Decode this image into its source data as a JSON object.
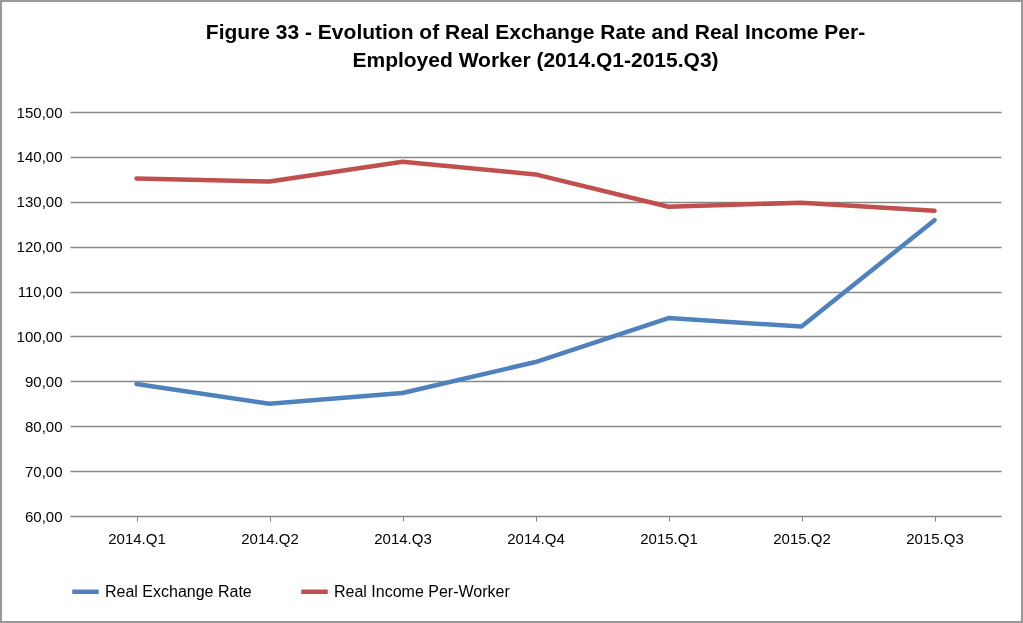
{
  "chart_data": {
    "type": "line",
    "title": "Figure 33 - Evolution of Real Exchange Rate and Real Income Per-Employed Worker (2014.Q1-2015.Q3)",
    "categories": [
      "2014.Q1",
      "2014.Q2",
      "2014.Q3",
      "2014.Q4",
      "2015.Q1",
      "2015.Q2",
      "2015.Q3"
    ],
    "series": [
      {
        "name": "Real Exchange Rate",
        "color": "#4f81bd",
        "values": [
          89.4,
          85.0,
          87.4,
          94.3,
          104.1,
          102.2,
          125.9
        ]
      },
      {
        "name": "Real Income Per-Worker",
        "color": "#c0504d",
        "values": [
          135.2,
          134.5,
          138.9,
          136.1,
          128.9,
          129.8,
          128.0
        ]
      }
    ],
    "ylim": [
      60,
      150
    ],
    "yticks": [
      {
        "value": 60,
        "label": "60,00"
      },
      {
        "value": 70,
        "label": "70,00"
      },
      {
        "value": 80,
        "label": "80,00"
      },
      {
        "value": 90,
        "label": "90,00"
      },
      {
        "value": 100,
        "label": "100,00"
      },
      {
        "value": 110,
        "label": "110,00"
      },
      {
        "value": 120,
        "label": "120,00"
      },
      {
        "value": 130,
        "label": "130,00"
      },
      {
        "value": 140,
        "label": "140,00"
      },
      {
        "value": 150,
        "label": "150,00"
      }
    ],
    "grid": "y",
    "legend": "bottom",
    "marker": "none",
    "line_style": "solid"
  }
}
